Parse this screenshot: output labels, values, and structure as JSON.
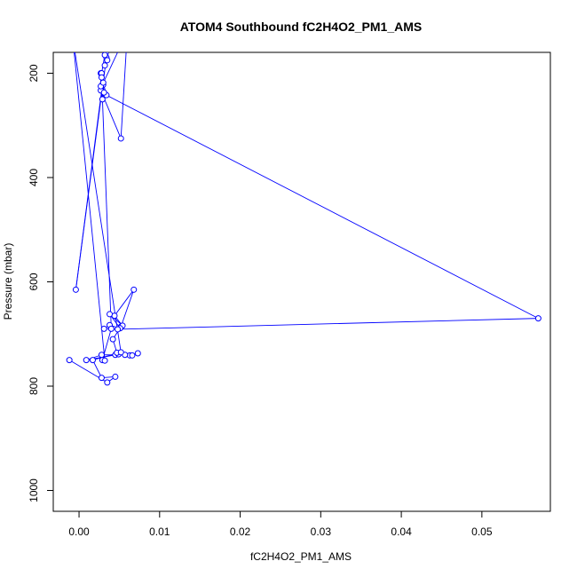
{
  "chart_data": {
    "type": "line",
    "title": "ATOM4 Southbound fC2H4O2_PM1_AMS",
    "xlabel": "fC2H4O2_PM1_AMS",
    "ylabel": "Pressure (mbar)",
    "xlim": [
      -0.0032,
      0.0585
    ],
    "ylim": [
      1040,
      160
    ],
    "y_reversed": true,
    "grid": false,
    "legend": "none",
    "x_ticks": [
      0.0,
      0.01,
      0.02,
      0.03,
      0.04,
      0.05
    ],
    "x_tick_labels": [
      "0.00",
      "0.01",
      "0.02",
      "0.03",
      "0.04",
      "0.05"
    ],
    "y_ticks": [
      200,
      400,
      600,
      800,
      1000
    ],
    "y_tick_labels": [
      "200",
      "400",
      "600",
      "800",
      "1000"
    ],
    "series_color": "#0000ff",
    "series": [
      {
        "x": [
          0.0063,
          0.0073,
          0.0066,
          0.0057,
          0.0045,
          0.0028,
          0.0009,
          0.0049,
          0.0047,
          0.0042,
          0.0052,
          0.0068,
          0.0044,
          0.0054,
          0.0038,
          0.0051,
          0.0038,
          0.0031,
          0.0048,
          0.057,
          0.0034,
          0.0027,
          0.0027,
          0.0052,
          0.006,
          0.0029,
          -0.0004,
          0.0034,
          0.0032,
          0.0033,
          0.0035,
          0.0032,
          0.0028,
          0.003,
          0.0029,
          0.0027,
          0.0031,
          0.003,
          0.0028,
          0.004,
          0.0029,
          0.0032,
          -0.0008,
          0.0052,
          0.0017,
          0.0028,
          0.0045,
          0.0035,
          -0.0012
        ],
        "y": [
          741,
          737,
          741,
          740,
          740,
          740,
          750,
          739,
          736,
          710,
          686,
          615,
          665,
          684,
          662,
          689,
          683,
          690,
          691,
          670,
          242,
          200,
          233,
          325,
          120,
          222,
          615,
          170,
          185,
          162,
          175,
          165,
          200,
          222,
          250,
          225,
          237,
          218,
          208,
          690,
          750,
          751,
          130,
          735,
          750,
          784,
          782,
          793,
          750
        ]
      }
    ]
  }
}
